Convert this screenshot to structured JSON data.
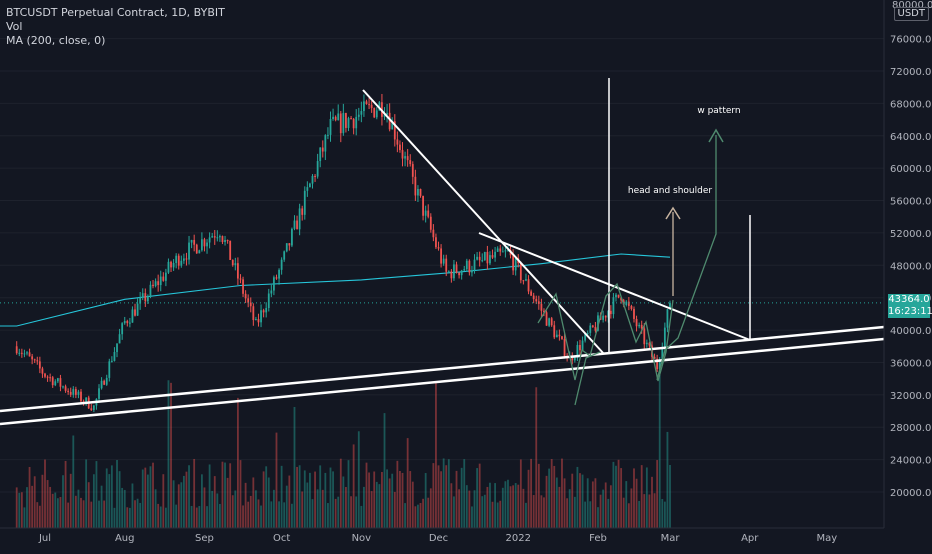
{
  "header": {
    "symbol_line": "BTCUSDT Perpetual Contract, 1D, BYBIT",
    "vol_label": "Vol",
    "ma_label": "MA (200, close, 0)"
  },
  "price_axis": {
    "currency": "USDT",
    "last_price": "43364.0",
    "countdown": "16:23:11",
    "top_partial_label": "80000.0",
    "ticks": [
      "76000.0",
      "72000.0",
      "68000.0",
      "64000.0",
      "60000.0",
      "56000.0",
      "52000.0",
      "48000.0",
      "44000.0",
      "40000.0",
      "36000.0",
      "32000.0",
      "28000.0",
      "24000.0",
      "20000.0"
    ]
  },
  "time_axis": {
    "labels": [
      "Jul",
      "Aug",
      "Sep",
      "Oct",
      "Nov",
      "Dec",
      "2022",
      "Feb",
      "Mar",
      "Apr",
      "May"
    ]
  },
  "annotations": {
    "head_and_shoulder": "head and shoulder",
    "w_pattern": "w pattern"
  },
  "colors": {
    "background": "#131722",
    "up": "#26a69a",
    "down": "#ef5350",
    "ma": "#26c6da",
    "trendline": "#ffffff",
    "pattern": "#4f8a6e",
    "arrow_hs": "#c8b4a0",
    "grid": "#1e222d"
  },
  "chart_data": {
    "type": "candlestick",
    "title": "BTCUSDT Perpetual Contract, 1D, BYBIT",
    "interval": "1D",
    "ylim": [
      16000,
      80000
    ],
    "last_price": 43364.0,
    "grid": false,
    "monthly_path": [
      {
        "date": "2021-06-20",
        "close": 38000
      },
      {
        "date": "2021-07-01",
        "close": 34500
      },
      {
        "date": "2021-07-20",
        "close": 30500
      },
      {
        "date": "2021-08-01",
        "close": 41000
      },
      {
        "date": "2021-08-22",
        "close": 49000
      },
      {
        "date": "2021-09-07",
        "close": 52500
      },
      {
        "date": "2021-09-21",
        "close": 40500
      },
      {
        "date": "2021-10-01",
        "close": 48000
      },
      {
        "date": "2021-10-20",
        "close": 65000
      },
      {
        "date": "2021-11-10",
        "close": 68000
      },
      {
        "date": "2021-11-26",
        "close": 54000
      },
      {
        "date": "2021-12-04",
        "close": 47000
      },
      {
        "date": "2021-12-28",
        "close": 49500
      },
      {
        "date": "2022-01-21",
        "close": 36500
      },
      {
        "date": "2022-02-10",
        "close": 44500
      },
      {
        "date": "2022-02-24",
        "close": 35500
      },
      {
        "date": "2022-03-01",
        "close": 43364
      }
    ],
    "ma200_path": [
      {
        "date": "2021-06-20",
        "value": 40500
      },
      {
        "date": "2021-08-01",
        "value": 43800
      },
      {
        "date": "2021-09-15",
        "value": 45500
      },
      {
        "date": "2021-11-01",
        "value": 46200
      },
      {
        "date": "2021-12-10",
        "value": 47200
      },
      {
        "date": "2022-01-10",
        "value": 48200
      },
      {
        "date": "2022-02-10",
        "value": 49400
      },
      {
        "date": "2022-03-01",
        "value": 49000
      }
    ],
    "volume_range": [
      15000,
      32000
    ]
  }
}
